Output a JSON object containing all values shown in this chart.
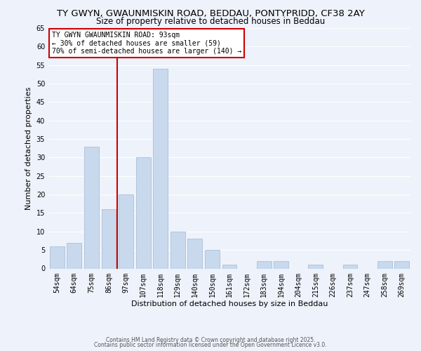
{
  "title1": "TY GWYN, GWAUNMISKIN ROAD, BEDDAU, PONTYPRIDD, CF38 2AY",
  "title2": "Size of property relative to detached houses in Beddau",
  "xlabel": "Distribution of detached houses by size in Beddau",
  "ylabel": "Number of detached properties",
  "bar_labels": [
    "54sqm",
    "64sqm",
    "75sqm",
    "86sqm",
    "97sqm",
    "107sqm",
    "118sqm",
    "129sqm",
    "140sqm",
    "150sqm",
    "161sqm",
    "172sqm",
    "183sqm",
    "194sqm",
    "204sqm",
    "215sqm",
    "226sqm",
    "237sqm",
    "247sqm",
    "258sqm",
    "269sqm"
  ],
  "bar_values": [
    6,
    7,
    33,
    16,
    20,
    30,
    54,
    10,
    8,
    5,
    1,
    0,
    2,
    2,
    0,
    1,
    0,
    1,
    0,
    2,
    2
  ],
  "bar_color": "#c8d9ee",
  "bar_edge_color": "#a8bfd8",
  "ylim": [
    0,
    65
  ],
  "yticks": [
    0,
    5,
    10,
    15,
    20,
    25,
    30,
    35,
    40,
    45,
    50,
    55,
    60,
    65
  ],
  "vline_color": "#cc0000",
  "vline_index": 3.5,
  "annotation_box_text": "TY GWYN GWAUNMISKIN ROAD: 93sqm\n← 30% of detached houses are smaller (59)\n70% of semi-detached houses are larger (140) →",
  "annotation_box_edgecolor": "#cc0000",
  "footer1": "Contains HM Land Registry data © Crown copyright and database right 2025.",
  "footer2": "Contains public sector information licensed under the Open Government Licence v3.0.",
  "background_color": "#eef2fa",
  "grid_color": "#ffffff",
  "title_fontsize": 9.5,
  "subtitle_fontsize": 8.5,
  "axis_label_fontsize": 8,
  "tick_fontsize": 7,
  "ann_fontsize": 7,
  "footer_fontsize": 5.5
}
